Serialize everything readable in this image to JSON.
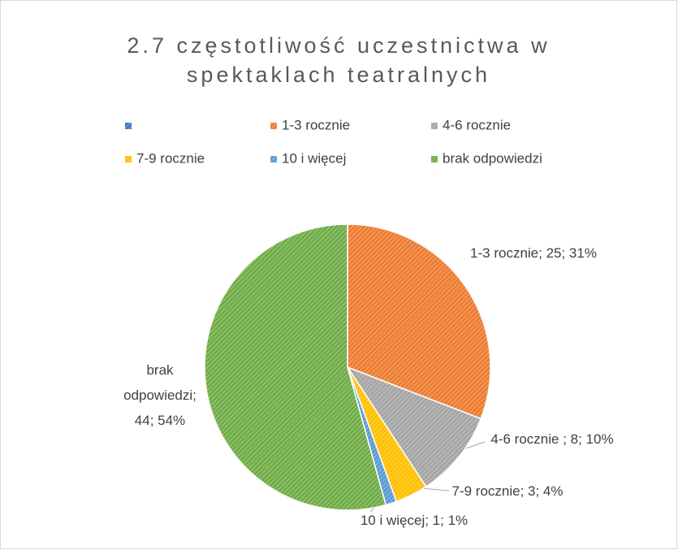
{
  "chart_data": {
    "type": "pie",
    "title": "2.7 częstotliwość uczestnictwa w spektaklach teatralnych",
    "categories": [
      null,
      "1-3 rocznie",
      "4-6 rocznie",
      "7-9 rocznie",
      "10 i więcej",
      "brak odpowiedzi"
    ],
    "values": [
      0,
      25,
      8,
      3,
      1,
      44
    ],
    "value_labels": [
      null,
      "1-3 rocznie; 25; 31%",
      "4-6 rocznie ; 8; 10%",
      "7-9 rocznie; 3; 4%",
      "10 i więcej; 1; 1%",
      "brak odpowiedzi; 44; 54%"
    ],
    "colors": [
      "#4472c4",
      "#ed7d31",
      "#a5a5a5",
      "#ffc000",
      "#5b9bd5",
      "#70ad47"
    ],
    "legend": "top"
  }
}
